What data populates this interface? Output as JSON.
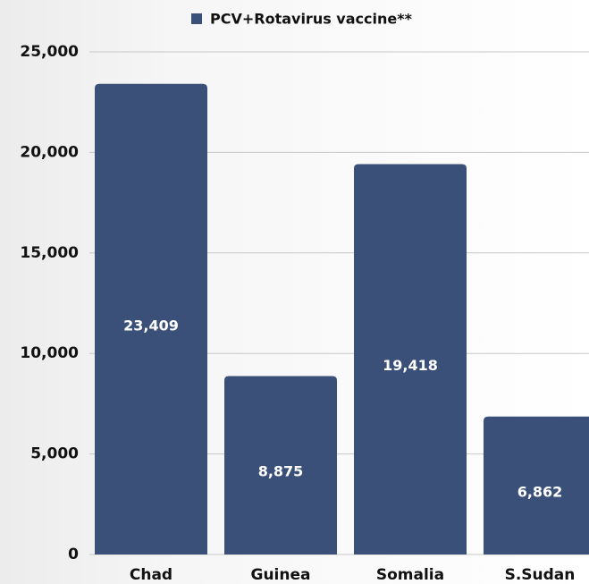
{
  "chart_data": {
    "type": "bar",
    "categories": [
      "Chad",
      "Guinea",
      "Somalia",
      "S.Sudan"
    ],
    "series": [
      {
        "name": "PCV+Rotavirus vaccine**",
        "color": "#3a5079",
        "values": [
          23409,
          8875,
          19418,
          6862
        ],
        "value_labels": [
          "23,409",
          "8,875",
          "19,418",
          "6,862"
        ]
      }
    ],
    "ylim": [
      0,
      25000
    ],
    "yticks": [
      0,
      {
        "value": 5000,
        "label": "5,000"
      },
      {
        "value": 10000,
        "label": "10,000"
      },
      {
        "value": 15000,
        "label": "15,000"
      },
      {
        "value": 20000,
        "label": "20,000"
      },
      {
        "value": 25000,
        "label": "25,000"
      }
    ],
    "grid": true,
    "legend": "top"
  }
}
